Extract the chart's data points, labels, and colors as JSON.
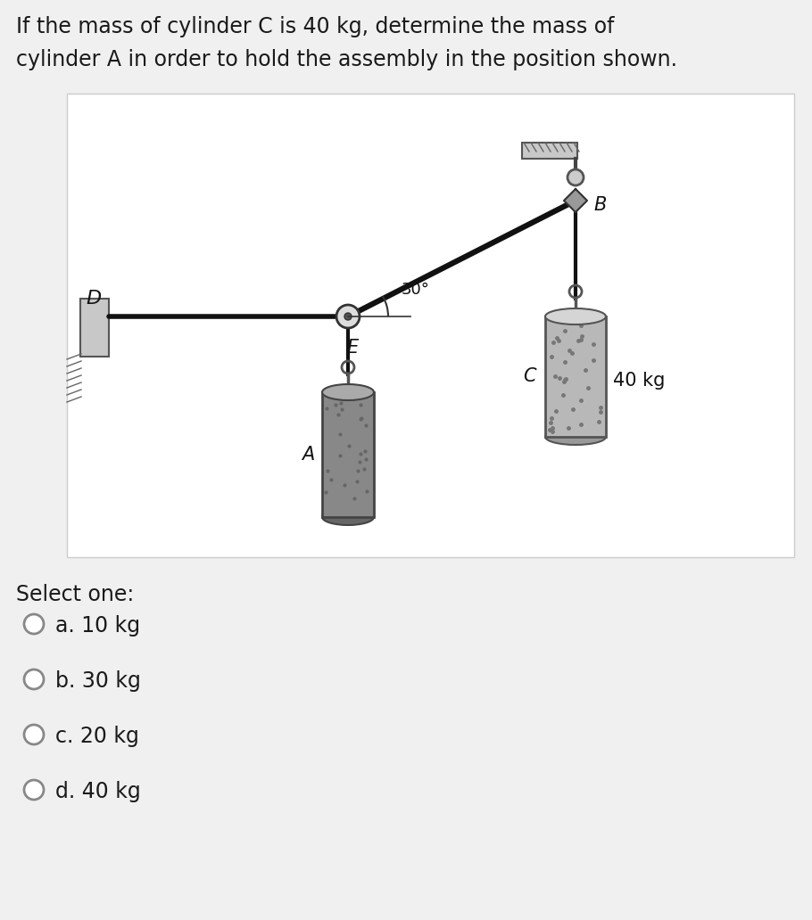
{
  "title_line1": "If the mass of cylinder C is 40 kg, determine the mass of",
  "title_line2": "cylinder A in order to hold the assembly in the position shown.",
  "bg_color": "#f0f0f0",
  "diagram_bg": "#ffffff",
  "question_fontsize": 17,
  "select_one_text": "Select one:",
  "options": [
    "a. 10 kg",
    "b. 30 kg",
    "c. 20 kg",
    "d. 40 kg"
  ],
  "option_fontsize": 17,
  "angle_label": "30°",
  "label_D": "D",
  "label_E": "E",
  "label_B": "B",
  "label_A": "A",
  "label_C": "C",
  "label_40kg": "40 kg",
  "line_color": "#1a1a1a"
}
